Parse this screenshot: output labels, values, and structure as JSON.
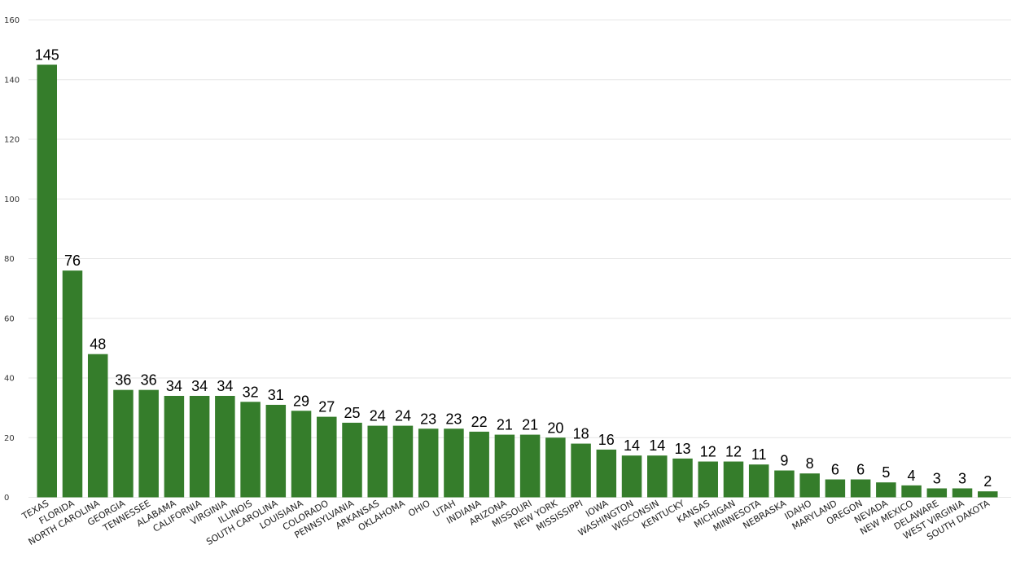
{
  "chart_data": {
    "type": "bar",
    "title": "",
    "xlabel": "",
    "ylabel": "",
    "ylim": [
      0,
      160
    ],
    "yticks": [
      0,
      20,
      40,
      60,
      80,
      100,
      120,
      140,
      160
    ],
    "grid": true,
    "bar_color": "#357d2b",
    "categories": [
      "TEXAS",
      "FLORIDA",
      "NORTH CAROLINA",
      "GEORGIA",
      "TENNESSEE",
      "ALABAMA",
      "CALIFORNIA",
      "VIRGINIA",
      "ILLINOIS",
      "SOUTH CAROLINA",
      "LOUISIANA",
      "COLORADO",
      "PENNSYLVANIA",
      "ARKANSAS",
      "OKLAHOMA",
      "OHIO",
      "UTAH",
      "INDIANA",
      "ARIZONA",
      "MISSOURI",
      "NEW YORK",
      "MISSISSIPPI",
      "IOWA",
      "WASHINGTON",
      "WISCONSIN",
      "KENTUCKY",
      "KANSAS",
      "MICHIGAN",
      "MINNESOTA",
      "NEBRASKA",
      "IDAHO",
      "MARYLAND",
      "OREGON",
      "NEVADA",
      "NEW MEXICO",
      "DELAWARE",
      "WEST VIRGINIA",
      "SOUTH DAKOTA"
    ],
    "values": [
      145,
      76,
      48,
      36,
      36,
      34,
      34,
      34,
      32,
      31,
      29,
      27,
      25,
      24,
      24,
      23,
      23,
      22,
      21,
      21,
      20,
      18,
      16,
      14,
      14,
      13,
      12,
      12,
      11,
      9,
      8,
      6,
      6,
      5,
      4,
      3,
      3,
      2
    ]
  }
}
